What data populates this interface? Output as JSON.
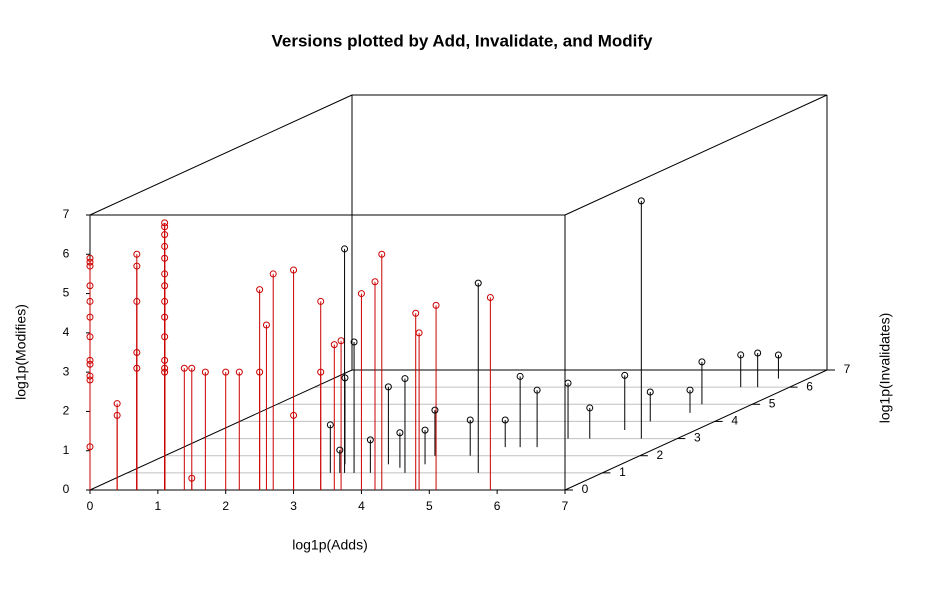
{
  "chart_data": {
    "type": "scatter3d",
    "title": "Versions plotted by Add, Invalidate, and Modify",
    "xlabel": "log1p(Adds)",
    "ylabel": "log1p(Modifies)",
    "zlabel": "log1p(Invalidates)",
    "x": [
      0,
      0,
      0,
      0,
      0,
      0,
      0,
      0,
      0,
      0,
      0,
      0,
      0.4,
      0.4,
      0.69,
      0.69,
      0.69,
      0.69,
      0.69,
      1.1,
      1.1,
      1.1,
      1.1,
      1.1,
      1.1,
      1.1,
      1.1,
      1.1,
      1.1,
      1.1,
      1.1,
      1.1,
      1.39,
      1.5,
      1.5,
      1.7,
      2.0,
      2.2,
      2.5,
      2.5,
      2.6,
      2.7,
      3.0,
      3.0,
      3.4,
      3.4,
      3.6,
      3.7,
      4.0,
      4.2,
      4.3,
      4.8,
      4.85,
      5.1,
      5.9,
      6.47,
      3.2,
      5.17,
      3.34,
      2.93,
      3.57,
      4.09,
      4.96,
      5.21,
      5.39,
      5.95,
      6.05,
      6.26,
      6.28,
      6.53,
      6.56,
      3.98,
      4.5,
      4.74,
      5.71,
      6.36,
      3.13,
      3.58,
      3.85,
      4.11,
      2.99
    ],
    "y": [
      5.9,
      5.8,
      5.7,
      5.2,
      4.8,
      4.4,
      3.9,
      3.3,
      3.2,
      2.9,
      2.8,
      1.1,
      2.2,
      1.9,
      6.0,
      5.7,
      4.8,
      3.5,
      3.1,
      6.8,
      6.7,
      6.5,
      6.2,
      5.9,
      5.5,
      5.2,
      4.8,
      4.4,
      3.9,
      3.3,
      3.1,
      3.0,
      3.1,
      3.1,
      0.3,
      3.0,
      3.0,
      3.0,
      5.1,
      3.0,
      4.2,
      5.5,
      5.6,
      1.9,
      4.8,
      3.0,
      3.7,
      3.8,
      5.0,
      5.3,
      6.0,
      4.5,
      4.0,
      4.7,
      4.9,
      6.05,
      5.7,
      4.83,
      3.33,
      2.2,
      1.97,
      2.4,
      1.8,
      1.45,
      1.41,
      1.39,
      0.75,
      1.08,
      0.82,
      0.87,
      0.6,
      1.16,
      0.91,
      0.69,
      0.78,
      0.58,
      0.58,
      0.84,
      0.89,
      0.87,
      1.22
    ],
    "z": [
      0,
      0,
      0,
      0,
      0,
      0,
      0,
      0,
      0,
      0,
      0,
      0,
      0,
      0,
      0,
      0,
      0,
      0,
      0,
      0,
      0,
      0,
      0,
      0,
      0,
      0,
      0,
      0,
      0,
      0,
      0,
      0,
      0,
      0,
      0,
      0,
      0,
      0,
      0,
      0,
      0,
      0,
      0,
      0,
      0,
      0,
      0,
      0,
      0,
      0,
      0,
      0,
      0,
      0,
      0,
      3,
      1,
      1,
      1,
      1.5,
      1.5,
      1,
      2.5,
      2.5,
      3,
      3.5,
      4,
      5,
      6,
      6,
      6.5,
      2,
      2,
      2.5,
      3,
      4.5,
      1,
      1,
      1.3,
      1.5,
      1
    ],
    "colors": [
      "#cc0000",
      "#000000"
    ],
    "xlim": [
      0,
      7
    ],
    "ylim": [
      0,
      7
    ],
    "zlim": [
      0,
      7
    ],
    "xticks": [
      0,
      1,
      2,
      3,
      4,
      5,
      6,
      7
    ],
    "yticks": [
      0,
      1,
      2,
      3,
      4,
      5,
      6,
      7
    ],
    "zticks": [
      0,
      1,
      2,
      3,
      4,
      5,
      6,
      7
    ],
    "grid": true
  }
}
